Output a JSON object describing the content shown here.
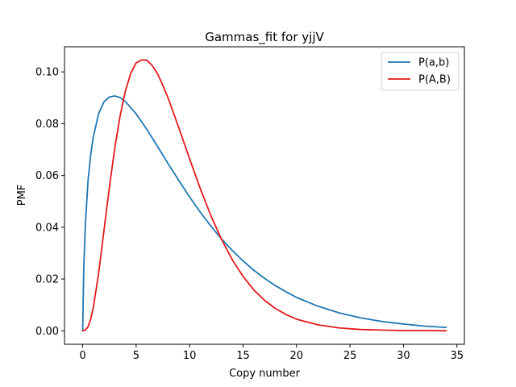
{
  "chart_data": {
    "type": "line",
    "title": "Gammas_fit for yjjV",
    "xlabel": "Copy number",
    "ylabel": "PMF",
    "xlim": [
      -1.7,
      35.7
    ],
    "ylim": [
      -0.0052,
      0.1097
    ],
    "xticks": [
      0,
      5,
      10,
      15,
      20,
      25,
      30,
      35
    ],
    "yticks": [
      0.0,
      0.02,
      0.04,
      0.06,
      0.08,
      0.1
    ],
    "ytick_labels": [
      "0.00",
      "0.02",
      "0.04",
      "0.06",
      "0.08",
      "0.10"
    ],
    "grid": false,
    "legend_position": "top-right",
    "series": [
      {
        "name": "P(a,b)",
        "color": "#1f77b4",
        "x": [
          0,
          0.1,
          0.25,
          0.5,
          0.75,
          1,
          1.5,
          2,
          2.5,
          3,
          3.5,
          4,
          5,
          6,
          7,
          8,
          9,
          10,
          11,
          12,
          13,
          14,
          15,
          16,
          17,
          18,
          19,
          20,
          22,
          24,
          26,
          28,
          30,
          32,
          34
        ],
        "y": [
          0.0,
          0.024,
          0.041,
          0.058,
          0.068,
          0.075,
          0.084,
          0.0885,
          0.0903,
          0.0907,
          0.0901,
          0.0885,
          0.0838,
          0.0778,
          0.0712,
          0.0645,
          0.058,
          0.0517,
          0.0458,
          0.0404,
          0.0354,
          0.031,
          0.027,
          0.0234,
          0.0203,
          0.0175,
          0.0151,
          0.0129,
          0.0095,
          0.0069,
          0.005,
          0.0036,
          0.0026,
          0.0018,
          0.0013
        ]
      },
      {
        "name": "P(A,B)",
        "color": "#e41a1c",
        "x": [
          0,
          0.25,
          0.5,
          0.75,
          1,
          1.5,
          2,
          2.5,
          3,
          3.5,
          4,
          4.5,
          5,
          5.5,
          6,
          6.5,
          7,
          7.5,
          8,
          9,
          10,
          11,
          12,
          13,
          14,
          15,
          16,
          17,
          18,
          19,
          20,
          22,
          24,
          26,
          28,
          30,
          32,
          34
        ],
        "y": [
          0.0,
          0.0003,
          0.0015,
          0.0045,
          0.009,
          0.0225,
          0.039,
          0.0555,
          0.0705,
          0.083,
          0.0927,
          0.0995,
          0.1035,
          0.1046,
          0.1045,
          0.1025,
          0.0993,
          0.0948,
          0.0898,
          0.0783,
          0.0664,
          0.0549,
          0.0444,
          0.0352,
          0.0274,
          0.021,
          0.0158,
          0.0118,
          0.0087,
          0.0063,
          0.0045,
          0.0023,
          0.0011,
          0.0005,
          0.0003,
          0.0001,
          0.0001,
          0.0
        ]
      }
    ]
  }
}
